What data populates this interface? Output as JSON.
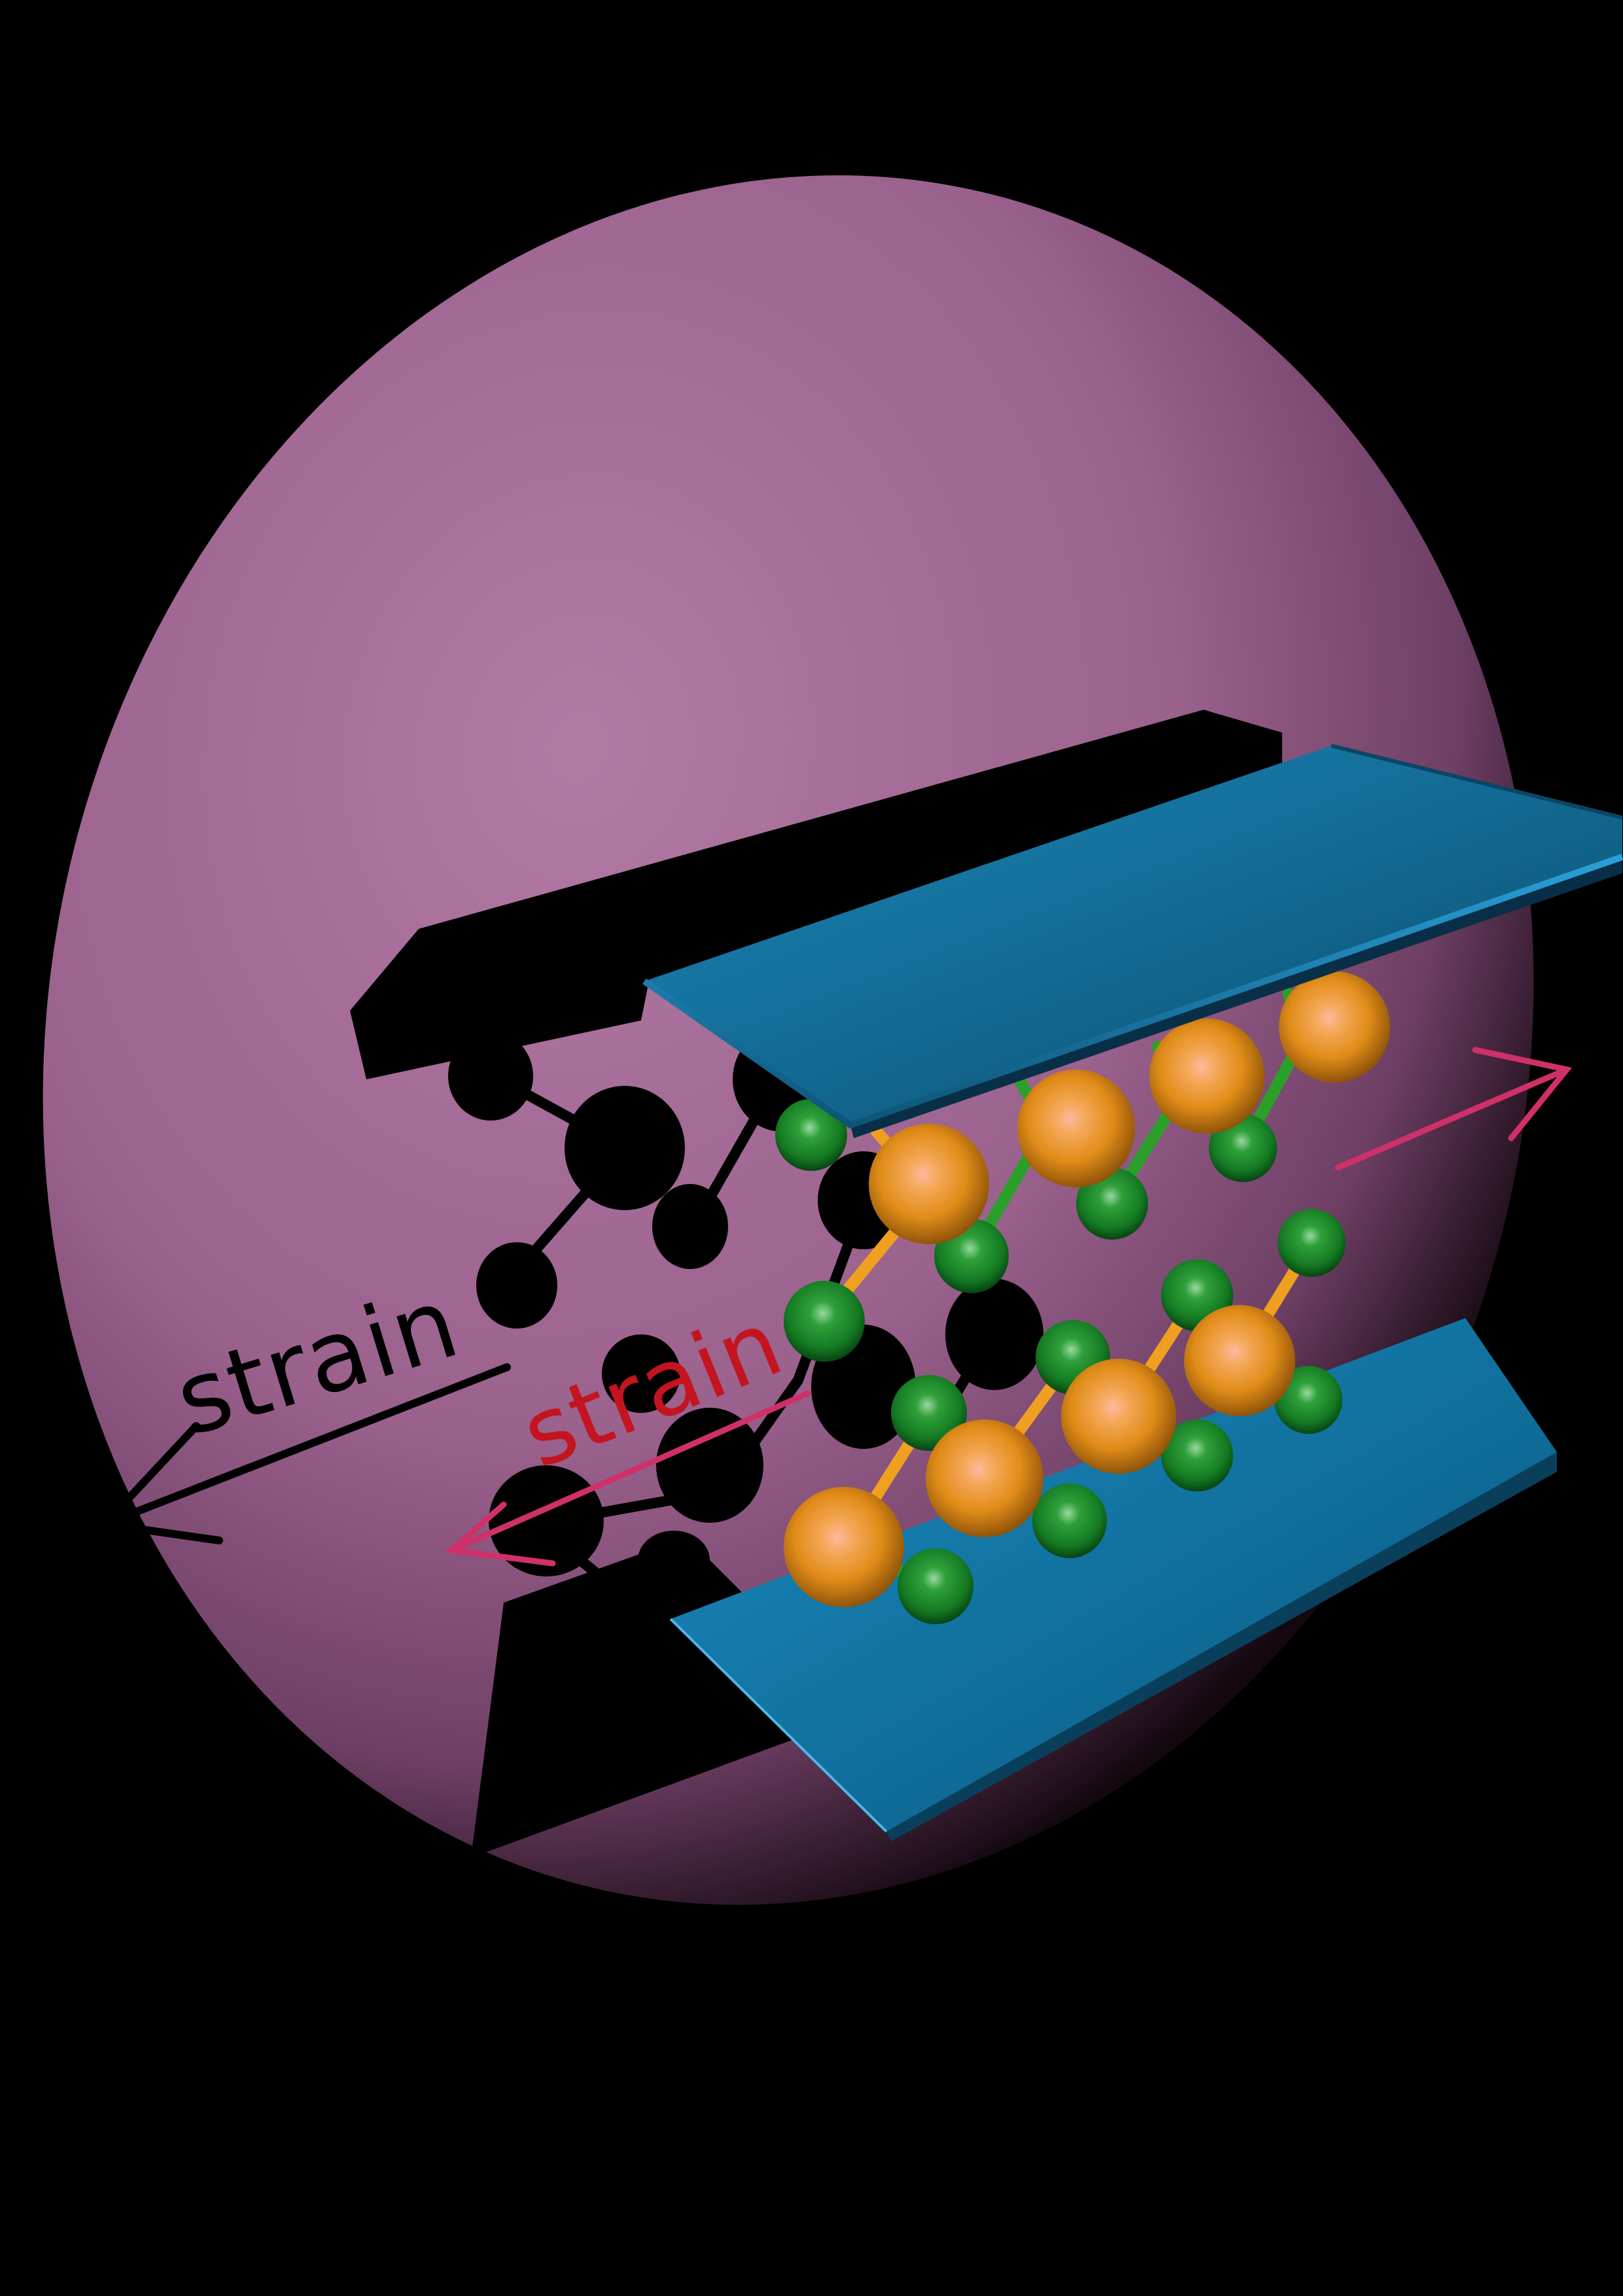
{
  "labels": {
    "shadow_strain": "strain",
    "front_strain": "strain"
  },
  "colors": {
    "background": "#000000",
    "backdrop_sphere": "#a86a98",
    "slab": "#1a7fb0",
    "large_atom": "#e89a22",
    "small_atom": "#1e8a2a",
    "bond_orange": "#f0a020",
    "bond_green": "#2aa02a",
    "arrow": "#d0306a",
    "front_label": "#c41420",
    "shadow": "#000000"
  }
}
